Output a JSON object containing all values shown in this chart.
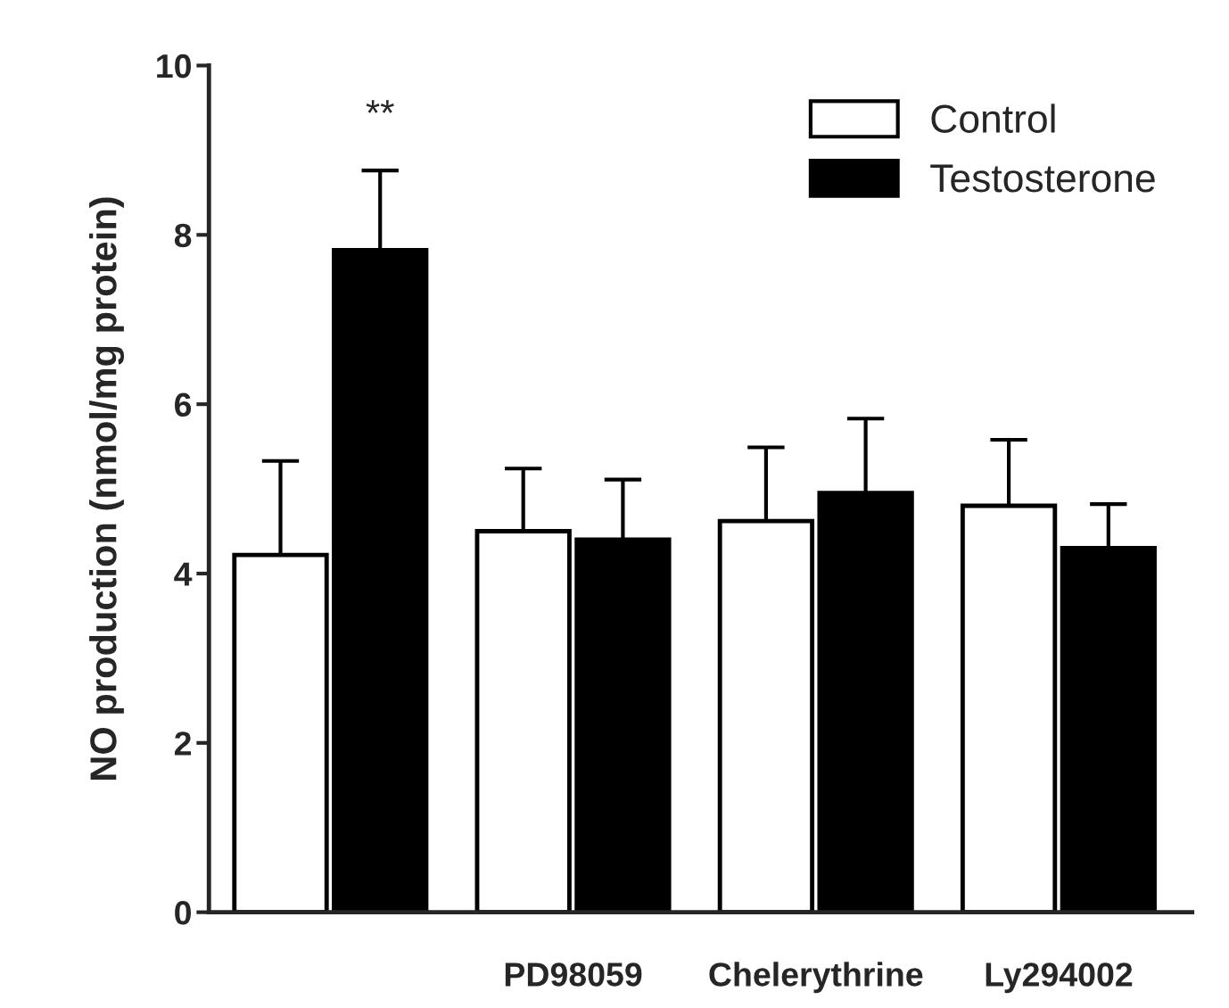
{
  "chart_data": {
    "type": "bar",
    "ylabel": "NO production (nmol/mg protein)",
    "categories": [
      null,
      "PD98059",
      "Chelerythrine",
      "Ly294002"
    ],
    "series": [
      {
        "name": "Control",
        "color": "#ffffff",
        "values": [
          4.22,
          4.5,
          4.62,
          4.8
        ],
        "errors": [
          [
            4.22,
            5.33
          ],
          [
            4.5,
            5.24
          ],
          [
            4.62,
            5.49
          ],
          [
            4.8,
            5.58
          ]
        ]
      },
      {
        "name": "Testosterone",
        "color": "#000000",
        "values": [
          7.82,
          4.4,
          4.95,
          4.3
        ],
        "errors": [
          [
            7.82,
            8.76
          ],
          [
            4.4,
            5.11
          ],
          [
            4.95,
            5.83
          ],
          [
            4.3,
            4.82
          ]
        ]
      }
    ],
    "annotations": [
      "**"
    ],
    "ylim": [
      0,
      10
    ],
    "yticks": [
      0,
      2,
      4,
      6,
      8,
      10
    ],
    "grid": false,
    "legend": "top right"
  }
}
